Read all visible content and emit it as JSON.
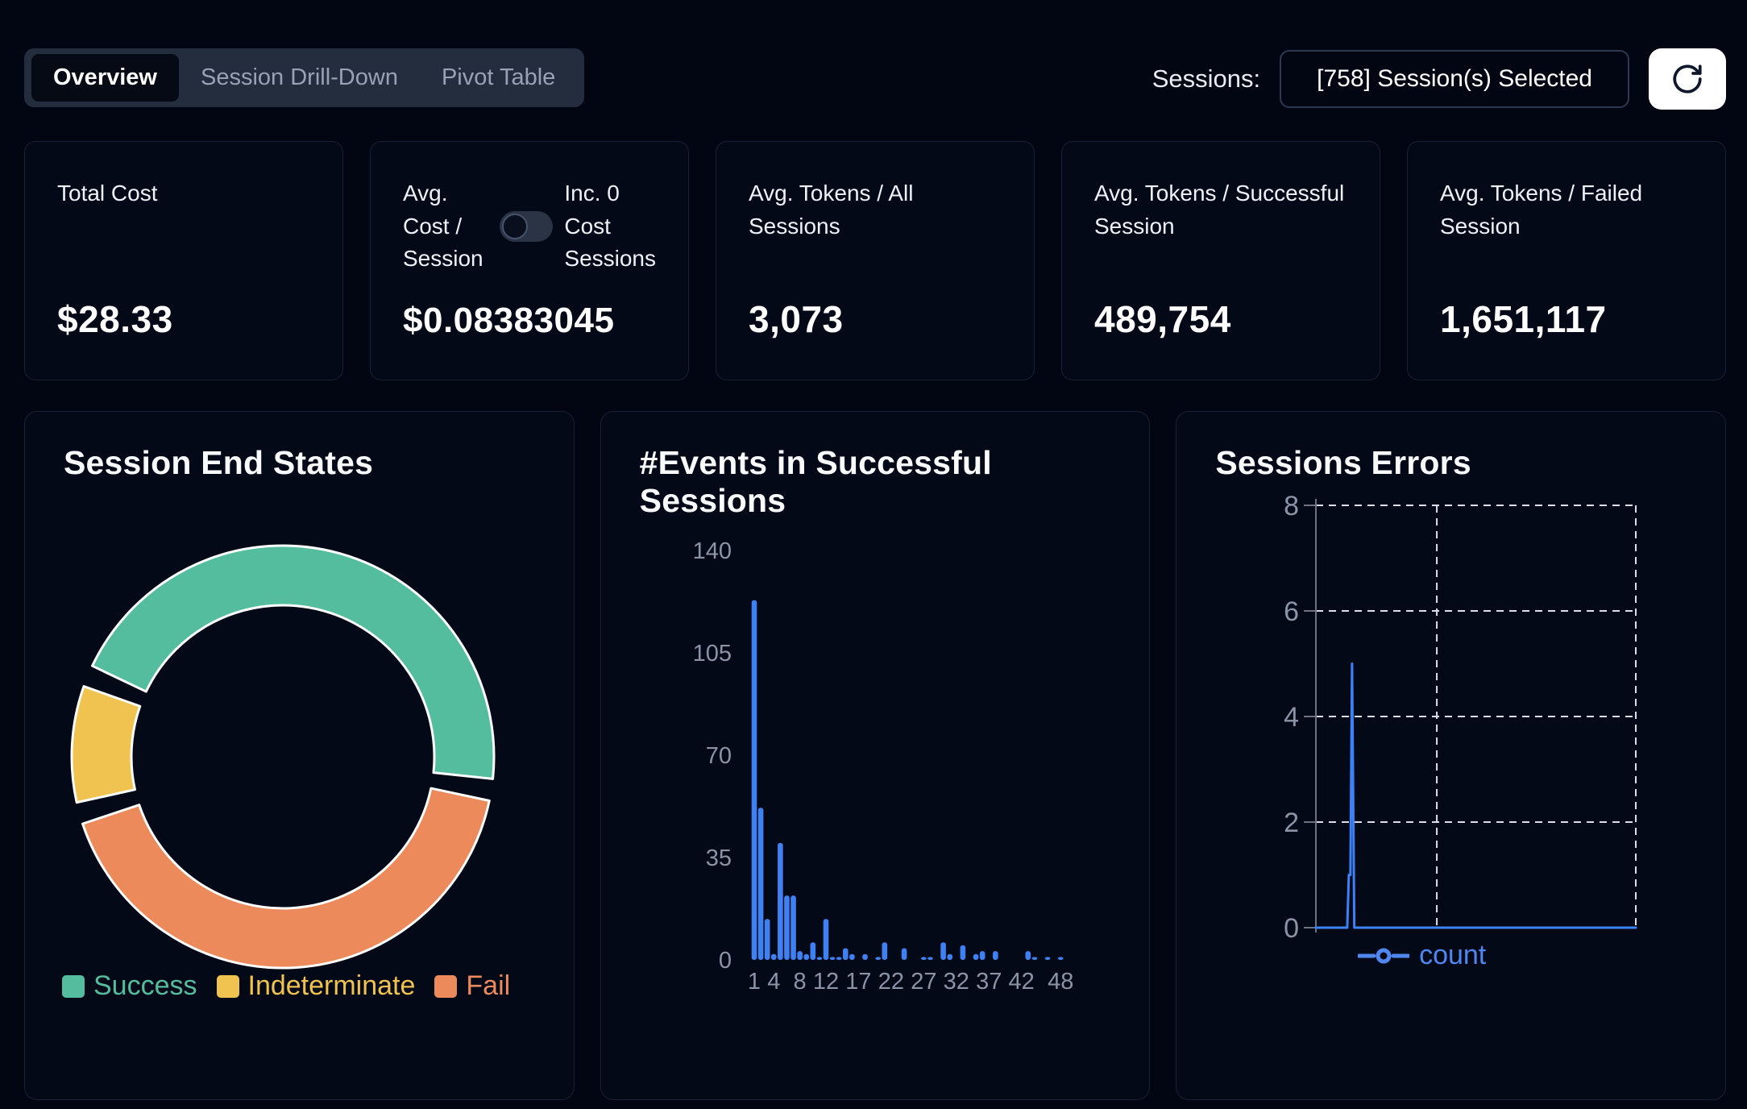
{
  "tab_bar": {
    "tabs": [
      {
        "label": "Overview",
        "active": true
      },
      {
        "label": "Session Drill-Down",
        "active": false
      },
      {
        "label": "Pivot Table",
        "active": false
      }
    ]
  },
  "sessions_control": {
    "label": "Sessions:",
    "selected_text": "[758] Session(s) Selected",
    "refresh_icon": "refresh-icon"
  },
  "stat_cards": [
    {
      "label": "Total Cost",
      "value": "$28.33"
    },
    {
      "label": "Avg. Cost / Session",
      "value": "$0.08383045",
      "toggle": {
        "right_label": "Inc. 0 Cost Sessions",
        "state": "off"
      }
    },
    {
      "label": "Avg. Tokens / All Sessions",
      "value": "3,073"
    },
    {
      "label": "Avg. Tokens / Successful Session",
      "value": "489,754"
    },
    {
      "label": "Avg. Tokens / Failed Session",
      "value": "1,651,117"
    }
  ],
  "colors": {
    "accent_blue": "#3b82f6",
    "bar_blue": "#3f80f3",
    "success_green": "#54bd9d",
    "indeterminate_yellow": "#f0c351",
    "fail_orange": "#ec8a5b",
    "axis_gray": "#8b94a7",
    "grid_dash": "#d9e0ea"
  },
  "chart_data": [
    {
      "type": "pie",
      "donut": true,
      "title": "Session End States",
      "legend_position": "bottom",
      "slices": [
        {
          "label": "Success",
          "percent": 47,
          "color": "#54bd9d",
          "start_deg": 295.5,
          "end_deg": 456
        },
        {
          "label": "Indeterminate",
          "percent": 9,
          "color": "#f0c351",
          "start_deg": 257.5,
          "end_deg": 289.5
        },
        {
          "label": "Fail",
          "percent": 44,
          "color": "#ec8a5b",
          "start_deg": 102,
          "end_deg": 251.5
        }
      ]
    },
    {
      "type": "bar",
      "title": "#Events in Successful Sessions",
      "xlabel": "",
      "ylabel": "",
      "ylim": [
        0,
        140
      ],
      "y_ticks": [
        0,
        35,
        70,
        105,
        140
      ],
      "x_ticks": [
        1,
        4,
        8,
        12,
        17,
        22,
        27,
        32,
        37,
        42,
        48
      ],
      "bar_color": "#3f80f3",
      "bars": [
        {
          "x": 1,
          "count": 123
        },
        {
          "x": 2,
          "count": 52
        },
        {
          "x": 3,
          "count": 14
        },
        {
          "x": 4,
          "count": 2
        },
        {
          "x": 5,
          "count": 40
        },
        {
          "x": 6,
          "count": 22
        },
        {
          "x": 7,
          "count": 22
        },
        {
          "x": 8,
          "count": 3
        },
        {
          "x": 9,
          "count": 2
        },
        {
          "x": 10,
          "count": 6
        },
        {
          "x": 11,
          "count": 1
        },
        {
          "x": 12,
          "count": 14
        },
        {
          "x": 13,
          "count": 1
        },
        {
          "x": 14,
          "count": 1
        },
        {
          "x": 15,
          "count": 4
        },
        {
          "x": 16,
          "count": 2
        },
        {
          "x": 18,
          "count": 2
        },
        {
          "x": 20,
          "count": 1
        },
        {
          "x": 21,
          "count": 6
        },
        {
          "x": 24,
          "count": 4
        },
        {
          "x": 27,
          "count": 1
        },
        {
          "x": 28,
          "count": 1
        },
        {
          "x": 30,
          "count": 6
        },
        {
          "x": 31,
          "count": 2
        },
        {
          "x": 33,
          "count": 5
        },
        {
          "x": 35,
          "count": 2
        },
        {
          "x": 36,
          "count": 3
        },
        {
          "x": 38,
          "count": 3
        },
        {
          "x": 43,
          "count": 3
        },
        {
          "x": 44,
          "count": 1
        },
        {
          "x": 46,
          "count": 1
        },
        {
          "x": 48,
          "count": 1
        }
      ]
    },
    {
      "type": "line",
      "title": "Sessions Errors",
      "ylim": [
        0,
        8
      ],
      "y_ticks": [
        0,
        2,
        4,
        6,
        8
      ],
      "grid": "dashed",
      "legend_position": "bottom",
      "legend_label": "count",
      "series": [
        {
          "name": "count",
          "color": "#3b82f6",
          "points": [
            {
              "t": 0,
              "count": 0
            },
            {
              "t": 0.098,
              "count": 0
            },
            {
              "t": 0.103,
              "count": 1
            },
            {
              "t": 0.108,
              "count": 1
            },
            {
              "t": 0.113,
              "count": 5
            },
            {
              "t": 0.12,
              "count": 0
            },
            {
              "t": 1,
              "count": 0
            }
          ]
        }
      ]
    }
  ]
}
